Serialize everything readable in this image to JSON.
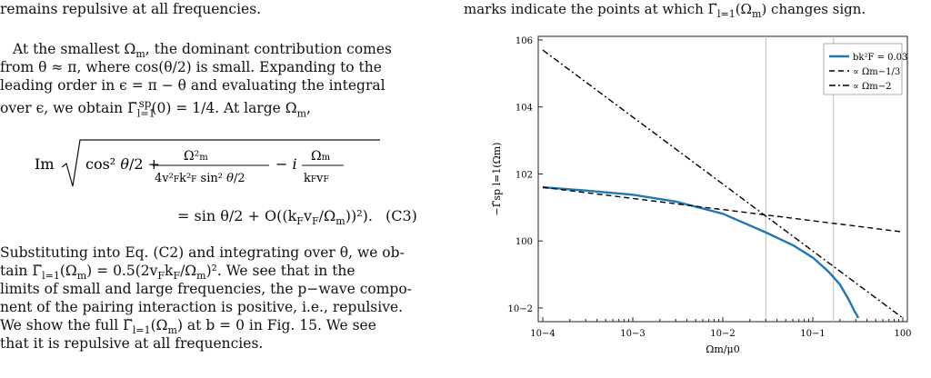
{
  "left": {
    "line_top": "remains repulsive at all frequencies.",
    "para1": [
      "At the smallest Ω",
      "from θ ≈ π, where cos(θ/2) is small. Expanding to the",
      "leading order in ϵ = π − θ and evaluating the integral",
      "over ϵ, we obtain Γ̃",
      "= 1/4. At large Ω"
    ],
    "para1_l1_tail": ", the dominant contribution comes",
    "para1_l4_tail": "(0) = 1/4. At large Ω",
    "eq_label": "Im",
    "eq_line2": "= sin θ/2 + O((k",
    "eq_line2_tail": ")",
    "eq_number": "(C3)",
    "para2": [
      "Substituting into Eq. (C2) and integrating over θ, we ob-",
      "tain Γ̃",
      "= 0.5(2v",
      "We see that in the",
      "limits of small and large frequencies, the p−wave compo-",
      "nent of the pairing interaction is positive, i.e., repulsive.",
      "We show the full Γ̃",
      "at b = 0 in Fig. 15. We see",
      "that it is repulsive at all frequencies."
    ]
  },
  "right": {
    "caption_top": "marks indicate the points at which Γ̃",
    "caption_top_tail": "(Ω",
    "caption_top_end": ") changes sign."
  },
  "chart_data": {
    "type": "line",
    "xscale": "log",
    "yscale": "log",
    "xlim": [
      0.0001,
      1
    ],
    "ylim": [
      0.005,
      1000000
    ],
    "xlabel": "Ωm/μ0",
    "ylabel": "−Γ̃sp l=1(Ωm)",
    "x_ticks": [
      "10−4",
      "10−3",
      "10−2",
      "10−1",
      "100"
    ],
    "y_ticks": [
      "10−2",
      "100",
      "102",
      "104",
      "106"
    ],
    "vlines": [
      0.03,
      0.17
    ],
    "legend_position": "top-right",
    "series": [
      {
        "name": "bk²F = 0.03",
        "style": "solid",
        "color": "#1f77b4",
        "x": [
          0.0001,
          0.0003,
          0.001,
          0.003,
          0.01,
          0.03,
          0.06,
          0.1,
          0.15,
          0.2,
          0.25,
          0.29,
          0.31,
          0.32
        ],
        "y": [
          40,
          32,
          24,
          15,
          6.5,
          1.8,
          0.75,
          0.32,
          0.12,
          0.05,
          0.018,
          0.008,
          0.006,
          0.005
        ]
      },
      {
        "name": "∝ Ωm−1/3",
        "style": "dashed",
        "color": "#000000",
        "x": [
          0.0001,
          1
        ],
        "y": [
          40,
          1.86
        ]
      },
      {
        "name": "∝ Ωm−2",
        "style": "dashdot",
        "color": "#000000",
        "x": [
          0.0001,
          1
        ],
        "y": [
          500000,
          0.005
        ]
      }
    ]
  }
}
